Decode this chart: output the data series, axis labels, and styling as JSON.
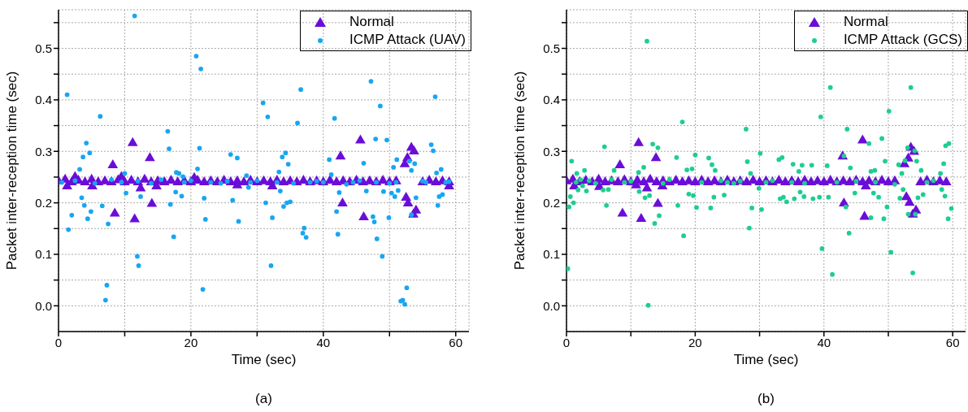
{
  "chart_data": [
    {
      "type": "scatter",
      "xlabel": "Time (sec)",
      "ylabel": "Packet inter-reception time (sec)",
      "annotations": [
        "(a)"
      ],
      "xlim": [
        0,
        62
      ],
      "xticks": [
        0,
        {
          "value": 10,
          "label": null
        },
        20,
        {
          "value": 30,
          "label": null
        },
        40,
        {
          "value": 50,
          "label": null
        },
        60
      ],
      "ylim": [
        -0.05,
        0.575
      ],
      "yticks": [
        {
          "value": 0,
          "label": "0.0"
        },
        {
          "value": 0.05,
          "label": null
        },
        0.1,
        {
          "value": 0.15,
          "label": null
        },
        0.2,
        {
          "value": 0.25,
          "label": null
        },
        0.3,
        {
          "value": 0.35,
          "label": null
        },
        0.4,
        {
          "value": 0.45,
          "label": null
        },
        0.5,
        {
          "value": 0.55,
          "label": null
        }
      ],
      "grid": true,
      "legend": "top right",
      "series": [
        {
          "name": "Normal",
          "color": "#6a0dd8",
          "marker": "triangle",
          "x": [
            0,
            1,
            2,
            3,
            4,
            5,
            6,
            7,
            8,
            9,
            10,
            11,
            12,
            13,
            14,
            15,
            16,
            17,
            18,
            19,
            20,
            21,
            22,
            23,
            24,
            25,
            26,
            27,
            28,
            29,
            30,
            31,
            32,
            33,
            34,
            35,
            36,
            37,
            38,
            39,
            40,
            41,
            42,
            43,
            44,
            45,
            46,
            47,
            48,
            49,
            50,
            51,
            55,
            56,
            57,
            58,
            59,
            1.3,
            5.1,
            8.2,
            8.5,
            11.2,
            11.5,
            12.4,
            13.8,
            14.1,
            14.8,
            27,
            32.3,
            42.6,
            42.9,
            45.6,
            46.1,
            52.3,
            52.7,
            53.3,
            53.7,
            52.5,
            52.8,
            53.6,
            54,
            59,
            2.5,
            9.5,
            20.5
          ],
          "values": [
            0.242,
            0.245,
            0.24,
            0.243,
            0.24,
            0.245,
            0.24,
            0.242,
            0.24,
            0.244,
            0.24,
            0.243,
            0.24,
            0.245,
            0.24,
            0.242,
            0.24,
            0.243,
            0.24,
            0.242,
            0.24,
            0.243,
            0.24,
            0.242,
            0.24,
            0.243,
            0.24,
            0.242,
            0.24,
            0.243,
            0.24,
            0.242,
            0.24,
            0.243,
            0.24,
            0.242,
            0.24,
            0.243,
            0.24,
            0.242,
            0.24,
            0.243,
            0.24,
            0.242,
            0.24,
            0.243,
            0.24,
            0.242,
            0.24,
            0.243,
            0.24,
            0.242,
            0.24,
            0.243,
            0.24,
            0.242,
            0.24,
            0.232,
            0.232,
            0.273,
            0.179,
            0.316,
            0.168,
            0.228,
            0.287,
            0.198,
            0.232,
            0.234,
            0.232,
            0.29,
            0.199,
            0.321,
            0.172,
            0.275,
            0.287,
            0.307,
            0.3,
            0.21,
            0.199,
            0.177,
            0.185,
            0.232,
            0.25,
            0.25,
            0.248
          ]
        },
        {
          "name": "ICMP Attack (UAV)",
          "color": "#17a6f2",
          "marker": "circle",
          "x": [
            1.3,
            11.5,
            6.3,
            4.2,
            3.7,
            4.7,
            3.2,
            2.0,
            1.5,
            3.5,
            3.9,
            4.4,
            4.9,
            6.6,
            7.5,
            7.3,
            7.1,
            10.0,
            10.2,
            11.9,
            12.1,
            12.4,
            16.5,
            16.7,
            16.9,
            17.4,
            17.7,
            18.6,
            17.8,
            18.2,
            18.8,
            20.8,
            21.5,
            21.3,
            21.0,
            22.0,
            22.2,
            21.8,
            26.0,
            27.0,
            26.3,
            27.2,
            28.4,
            28.7,
            30.9,
            31.6,
            31.3,
            32.3,
            32.1,
            33.3,
            33.5,
            33.8,
            34.3,
            34.7,
            34.0,
            34.5,
            35.0,
            36.1,
            36.6,
            37.1,
            36.9,
            37.4,
            40.9,
            41.7,
            41.2,
            42.4,
            42.0,
            42.2,
            46.1,
            46.5,
            47.2,
            48.6,
            47.9,
            49.6,
            47.5,
            47.7,
            48.1,
            48.9,
            49.1,
            49.9,
            50.6,
            51.1,
            50.3,
            50.8,
            51.3,
            51.7,
            52.0,
            52.3,
            52.6,
            53.0,
            53.3,
            53.8,
            54.0,
            53.3,
            56.3,
            56.6,
            56.9,
            57.1,
            57.8,
            57.5,
            58.0,
            57.3,
            0.5,
            2.5,
            5.5,
            8,
            9.5,
            12,
            14,
            15.5,
            19,
            20,
            23,
            24.5,
            25.5,
            29,
            30,
            33,
            35.5,
            38,
            39,
            40,
            43.5,
            44.5,
            45.5,
            48,
            50,
            51,
            55,
            55.5,
            58.5,
            59
          ],
          "values": [
            0.41,
            0.563,
            0.368,
            0.316,
            0.289,
            0.297,
            0.265,
            0.176,
            0.148,
            0.21,
            0.195,
            0.169,
            0.183,
            0.194,
            0.159,
            0.04,
            0.011,
            0.257,
            0.219,
            0.096,
            0.078,
            0.212,
            0.339,
            0.305,
            0.197,
            0.134,
            0.221,
            0.213,
            0.259,
            0.257,
            0.251,
            0.485,
            0.46,
            0.306,
            0.266,
            0.209,
            0.168,
            0.032,
            0.294,
            0.287,
            0.205,
            0.164,
            0.253,
            0.23,
            0.394,
            0.367,
            0.2,
            0.171,
            0.078,
            0.26,
            0.223,
            0.289,
            0.297,
            0.275,
            0.193,
            0.2,
            0.202,
            0.355,
            0.42,
            0.151,
            0.141,
            0.133,
            0.284,
            0.364,
            0.255,
            0.22,
            0.183,
            0.139,
            0.277,
            0.223,
            0.436,
            0.388,
            0.324,
            0.322,
            0.173,
            0.163,
            0.13,
            0.096,
            0.222,
            0.171,
            0.269,
            0.284,
            0.219,
            0.212,
            0.224,
            0.009,
            0.011,
            0.003,
            0.035,
            0.281,
            0.263,
            0.276,
            0.21,
            0.177,
            0.313,
            0.301,
            0.406,
            0.258,
            0.265,
            0.212,
            0.216,
            0.195,
            0.24,
            0.243,
            0.238,
            0.245,
            0.24,
            0.242,
            0.238,
            0.245,
            0.24,
            0.243,
            0.24,
            0.238,
            0.242,
            0.24,
            0.243,
            0.24,
            0.238,
            0.24,
            0.242,
            0.24,
            0.236,
            0.24,
            0.243,
            0.24,
            0.238,
            0.24,
            0.242,
            0.24,
            0.24,
            0.241
          ]
        }
      ]
    },
    {
      "type": "scatter",
      "xlabel": "Time (sec)",
      "ylabel": "Packet inter-reception time (sec)",
      "annotations": [
        "(b)"
      ],
      "xlim": [
        0,
        62
      ],
      "xticks": [
        0,
        {
          "value": 10,
          "label": null
        },
        20,
        {
          "value": 30,
          "label": null
        },
        40,
        {
          "value": 50,
          "label": null
        },
        60
      ],
      "ylim": [
        -0.05,
        0.575
      ],
      "yticks": [
        {
          "value": 0,
          "label": "0.0"
        },
        {
          "value": 0.05,
          "label": null
        },
        0.1,
        {
          "value": 0.15,
          "label": null
        },
        0.2,
        {
          "value": 0.25,
          "label": null
        },
        0.3,
        {
          "value": 0.35,
          "label": null
        },
        0.4,
        {
          "value": 0.45,
          "label": null
        },
        0.5,
        {
          "value": 0.55,
          "label": null
        }
      ],
      "grid": true,
      "legend": "top right",
      "series": [
        {
          "name": "Normal",
          "color": "#6a0dd8",
          "marker": "triangle",
          "x": [
            0,
            1,
            2,
            3,
            4,
            5,
            6,
            7,
            8,
            9,
            10,
            11,
            12,
            13,
            14,
            15,
            16,
            17,
            18,
            19,
            20,
            21,
            22,
            23,
            24,
            25,
            26,
            27,
            28,
            29,
            30,
            31,
            32,
            33,
            34,
            35,
            36,
            37,
            38,
            39,
            40,
            41,
            42,
            43,
            44,
            45,
            46,
            47,
            48,
            49,
            50,
            51,
            55,
            56,
            57,
            58,
            59,
            1.2,
            5.1,
            8.3,
            8.7,
            11.2,
            11.6,
            12.5,
            13.9,
            14.2,
            14.9,
            10.8,
            42.9,
            43.1,
            46.0,
            46.3,
            52.5,
            53.1,
            53.5,
            54.0,
            52.8,
            53.3,
            53.8,
            54.3,
            46.5
          ],
          "values": [
            0.242,
            0.245,
            0.24,
            0.243,
            0.24,
            0.245,
            0.24,
            0.242,
            0.24,
            0.244,
            0.24,
            0.243,
            0.24,
            0.245,
            0.24,
            0.242,
            0.24,
            0.243,
            0.24,
            0.242,
            0.24,
            0.243,
            0.24,
            0.242,
            0.24,
            0.243,
            0.24,
            0.242,
            0.24,
            0.243,
            0.24,
            0.242,
            0.24,
            0.243,
            0.24,
            0.242,
            0.24,
            0.243,
            0.24,
            0.242,
            0.24,
            0.243,
            0.24,
            0.242,
            0.24,
            0.243,
            0.24,
            0.242,
            0.24,
            0.243,
            0.24,
            0.242,
            0.24,
            0.243,
            0.24,
            0.242,
            0.24,
            0.232,
            0.231,
            0.273,
            0.179,
            0.316,
            0.169,
            0.228,
            0.287,
            0.198,
            0.232,
            0.234,
            0.29,
            0.199,
            0.321,
            0.173,
            0.275,
            0.286,
            0.307,
            0.299,
            0.211,
            0.2,
            0.177,
            0.185,
            0.232
          ]
        },
        {
          "name": "ICMP Attack (GCS)",
          "color": "#1ccf8f",
          "marker": "circle",
          "x": [
            0.2,
            12.5,
            12.7,
            0.8,
            0.6,
            0.4,
            1.1,
            1.6,
            2.2,
            2.8,
            1.8,
            2.5,
            3.1,
            5.9,
            6.2,
            7.4,
            5.7,
            6.5,
            11.2,
            12.0,
            11.3,
            12.2,
            12.9,
            13.4,
            14.2,
            13.7,
            14.4,
            17.1,
            18.0,
            17.3,
            18.2,
            18.7,
            19.5,
            19.0,
            19.7,
            20.0,
            20.2,
            22.1,
            22.6,
            23.1,
            22.4,
            22.9,
            24.5,
            27.9,
            28.1,
            28.6,
            28.4,
            28.8,
            30.3,
            30.1,
            29.9,
            33.0,
            33.5,
            33.2,
            33.7,
            34.2,
            35.2,
            36.1,
            36.6,
            35.4,
            36.3,
            36.9,
            38.1,
            38.3,
            39.3,
            39.5,
            39.7,
            40.5,
            41.0,
            41.3,
            40.7,
            43.6,
            43.9,
            43.1,
            44.1,
            44.8,
            43.4,
            47.0,
            47.3,
            47.3,
            47.9,
            47.7,
            48.5,
            49.0,
            49.5,
            49.8,
            49.3,
            50.1,
            50.4,
            51.6,
            52.1,
            51.8,
            52.3,
            52.6,
            53.0,
            54.1,
            53.5,
            53.8,
            53.1,
            54.2,
            54.4,
            55.1,
            54.6,
            55.4,
            58.1,
            58.6,
            58.3,
            58.8,
            58.9,
            59.4,
            59.3,
            59.8,
            1.5,
            3.5,
            4.5,
            7,
            9,
            10,
            15,
            16,
            21,
            24,
            25,
            26,
            27,
            31,
            32,
            35,
            37,
            42,
            45,
            48,
            51,
            56,
            57
          ],
          "values": [
            0.072,
            0.514,
            0.001,
            0.281,
            0.212,
            0.192,
            0.2,
            0.257,
            0.245,
            0.263,
            0.225,
            0.233,
            0.223,
            0.309,
            0.195,
            0.263,
            0.225,
            0.226,
            0.259,
            0.269,
            0.222,
            0.21,
            0.214,
            0.314,
            0.307,
            0.16,
            0.175,
            0.288,
            0.357,
            0.195,
            0.136,
            0.264,
            0.266,
            0.217,
            0.214,
            0.293,
            0.191,
            0.287,
            0.274,
            0.263,
            0.19,
            0.211,
            0.215,
            0.343,
            0.28,
            0.257,
            0.151,
            0.19,
            0.187,
            0.296,
            0.228,
            0.284,
            0.288,
            0.208,
            0.211,
            0.202,
            0.275,
            0.261,
            0.273,
            0.208,
            0.221,
            0.212,
            0.273,
            0.208,
            0.211,
            0.367,
            0.111,
            0.272,
            0.424,
            0.061,
            0.211,
            0.343,
            0.141,
            0.291,
            0.268,
            0.219,
            0.192,
            0.315,
            0.171,
            0.261,
            0.263,
            0.219,
            0.211,
            0.325,
            0.281,
            0.192,
            0.169,
            0.378,
            0.104,
            0.274,
            0.257,
            0.209,
            0.226,
            0.282,
            0.307,
            0.301,
            0.424,
            0.064,
            0.178,
            0.178,
            0.281,
            0.263,
            0.21,
            0.216,
            0.257,
            0.276,
            0.226,
            0.213,
            0.311,
            0.315,
            0.169,
            0.189,
            0.24,
            0.243,
            0.238,
            0.245,
            0.24,
            0.242,
            0.238,
            0.245,
            0.24,
            0.243,
            0.24,
            0.238,
            0.242,
            0.24,
            0.243,
            0.24,
            0.238,
            0.24,
            0.242,
            0.24,
            0.236,
            0.24,
            0.243
          ]
        }
      ]
    }
  ]
}
